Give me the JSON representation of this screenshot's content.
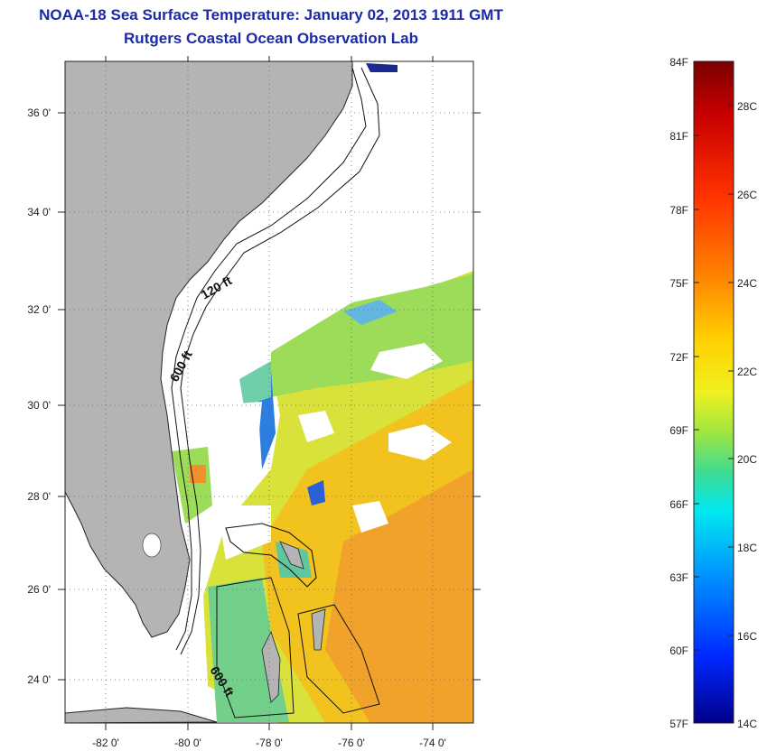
{
  "title_line1": "NOAA-18 Sea Surface Temperature:  January 02, 2013 1911 GMT",
  "title_line2": "Rutgers Coastal Ocean Observation Lab",
  "map": {
    "lon_range": [
      -83,
      -73
    ],
    "lat_range": [
      23,
      37
    ],
    "lon_ticks": [
      {
        "value": -82,
        "label": "-82 0'"
      },
      {
        "value": -80,
        "label": "-80 0'"
      },
      {
        "value": -78,
        "label": "-78 0'"
      },
      {
        "value": -76,
        "label": "-76 0'"
      },
      {
        "value": -74,
        "label": "-74 0'"
      }
    ],
    "lat_ticks": [
      {
        "value": 24,
        "label": "24 0'"
      },
      {
        "value": 26,
        "label": "26 0'"
      },
      {
        "value": 28,
        "label": "28 0'"
      },
      {
        "value": 30,
        "label": "30 0'"
      },
      {
        "value": 32,
        "label": "32 0'"
      },
      {
        "value": 34,
        "label": "34 0'"
      },
      {
        "value": 36,
        "label": "36 0'"
      }
    ],
    "contour_labels": [
      "120 ft",
      "600 ft",
      "600 ft"
    ],
    "land_color": "#b4b4b4",
    "grid": true
  },
  "colorbar": {
    "fahrenheit_labels": [
      "84F",
      "81F",
      "78F",
      "75F",
      "72F",
      "69F",
      "66F",
      "63F",
      "60F",
      "57F"
    ],
    "celsius_labels": [
      "28C",
      "26C",
      "24C",
      "22C",
      "20C",
      "18C",
      "16C",
      "14C"
    ],
    "colors": [
      "#7a0000",
      "#c80000",
      "#ff2800",
      "#ff7000",
      "#ffb400",
      "#fff000",
      "#b4f03c",
      "#3cdc8c",
      "#00e6ff",
      "#0096ff",
      "#0032ff",
      "#00008c"
    ]
  }
}
